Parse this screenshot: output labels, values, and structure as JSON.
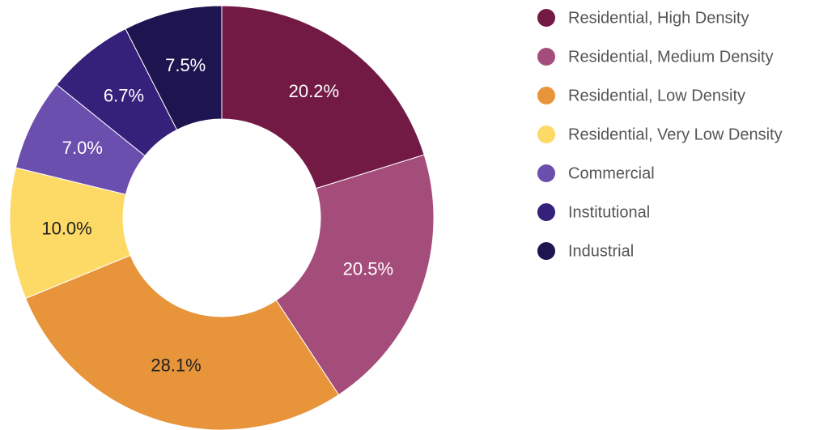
{
  "chart_data": {
    "type": "donut",
    "categories": [
      "Residential, High Density",
      "Residential, Medium Density",
      "Residential, Low Density",
      "Residential, Very Low Density",
      "Commercial",
      "Institutional",
      "Industrial"
    ],
    "values": [
      20.2,
      20.5,
      28.1,
      10.0,
      7.0,
      6.7,
      7.5
    ],
    "value_labels": [
      "20.2%",
      "20.5%",
      "28.1%",
      "10.0%",
      "7.0%",
      "6.7%",
      "7.5%"
    ],
    "colors": [
      "#721a44",
      "#a54d7a",
      "#e8943a",
      "#fdd966",
      "#6b4fae",
      "#35207a",
      "#1e1450"
    ],
    "legend": "right"
  }
}
